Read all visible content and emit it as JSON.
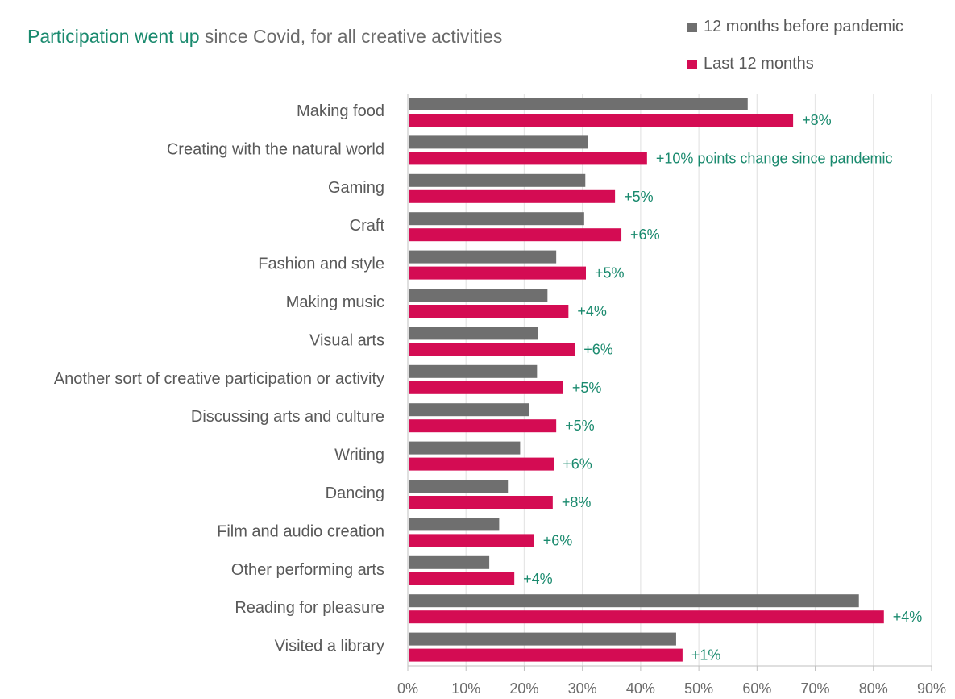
{
  "chart_data": {
    "type": "bar",
    "orientation": "horizontal",
    "title": {
      "highlight": "Participation went up",
      "rest": " since Covid, for all creative activities"
    },
    "xlabel": "",
    "ylabel": "",
    "xlim": [
      0,
      90
    ],
    "x_ticks": [
      "0%",
      "10%",
      "20%",
      "30%",
      "40%",
      "50%",
      "60%",
      "70%",
      "80%",
      "90%"
    ],
    "grid": true,
    "legend_position": "top-right",
    "categories": [
      "Making food",
      "Creating with the natural world",
      "Gaming",
      "Craft",
      "Fashion and style",
      "Making music",
      "Visual arts",
      "Another sort of creative participation or activity",
      "Discussing arts and culture",
      "Writing",
      "Dancing",
      "Film and audio creation",
      "Other performing arts",
      "Reading for pleasure",
      "Visited a library"
    ],
    "series": [
      {
        "name": "12 months before pandemic",
        "color": "#6f6f6f",
        "values": [
          58.4,
          30.9,
          30.5,
          30.3,
          25.5,
          24.0,
          22.3,
          22.2,
          20.9,
          19.3,
          17.2,
          15.7,
          14.0,
          77.5,
          46.1
        ]
      },
      {
        "name": "Last 12 months",
        "color": "#d40c53",
        "values": [
          66.2,
          41.1,
          35.6,
          36.7,
          30.6,
          27.6,
          28.7,
          26.7,
          25.5,
          25.1,
          24.9,
          21.7,
          18.3,
          81.8,
          47.2
        ]
      }
    ],
    "annotations": [
      "+8%",
      "+10% points change since pandemic",
      "+5%",
      "+6%",
      "+5%",
      "+4%",
      "+6%",
      "+5%",
      "+5%",
      "+6%",
      "+8%",
      "+6%",
      "+4%",
      "+4%",
      "+1%"
    ],
    "colors": {
      "annotation": "#1a8a6e",
      "title_highlight": "#1a8a6e",
      "text": "#595959",
      "grid": "#e6e6e6",
      "axis": "#bfbfbf"
    }
  }
}
